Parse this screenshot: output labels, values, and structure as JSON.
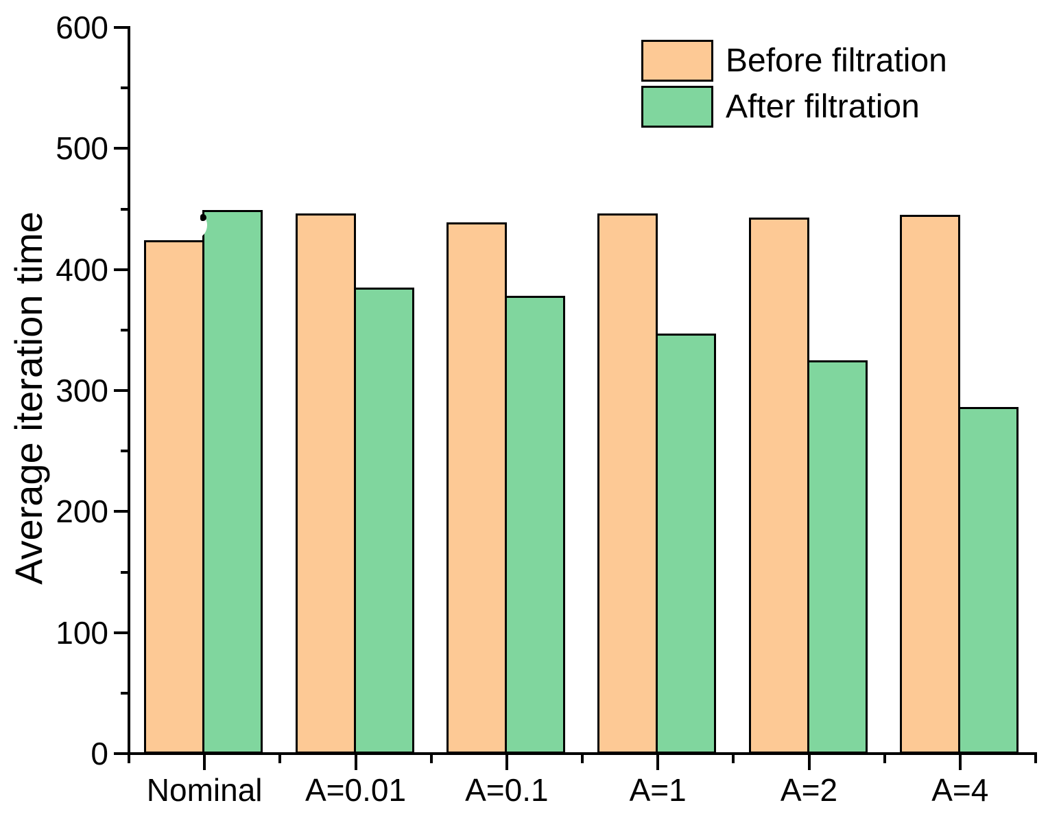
{
  "chart_data": {
    "type": "bar",
    "title": "",
    "xlabel": "",
    "ylabel": "Average iteration time",
    "categories": [
      "Nominal",
      "A=0.01",
      "A=0.1",
      "A=1",
      "A=2",
      "A=4"
    ],
    "series": [
      {
        "name": "Before filtration",
        "color": "#FDC995",
        "values": [
          423,
          445,
          438,
          445,
          442,
          444
        ]
      },
      {
        "name": "After filtration",
        "color": "#80D69E",
        "values": [
          448,
          384,
          377,
          346,
          324,
          285
        ]
      }
    ],
    "ylim": [
      0,
      600
    ],
    "ytick_major_step": 100,
    "ytick_minor_step": 50,
    "ytick_labels": [
      "0",
      "100",
      "200",
      "300",
      "400",
      "500",
      "600"
    ],
    "bar_edge_color": "#000000",
    "axis_color": "#000000",
    "grid": false,
    "legend_position": "top-right"
  }
}
